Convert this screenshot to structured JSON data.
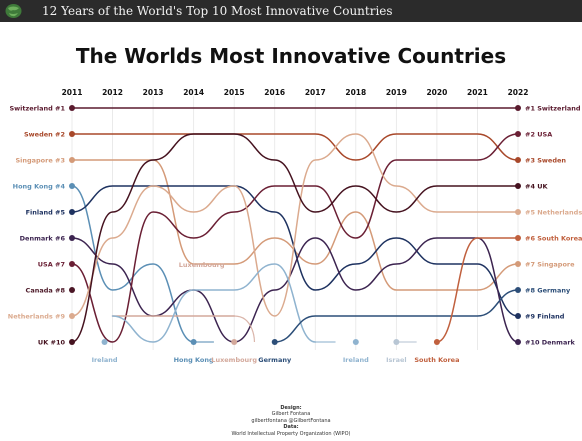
{
  "header": {
    "title": "12 Years of the World's Top 10 Most Innovative Countries",
    "logo_icon": "globe-icon"
  },
  "colors": {
    "Switzerland": "#5a1a2e",
    "Sweden": "#a8482a",
    "Singapore": "#d49a78",
    "Hong Kong": "#5b8fb5",
    "Finland": "#1e3260",
    "Denmark": "#3c2450",
    "USA": "#6a1f34",
    "Canada": "#4a1625",
    "Netherlands": "#dbaa8e",
    "UK": "#45121f",
    "Luxembourg": "#d3a89b",
    "Ireland": "#8fb3cf",
    "Germany": "#2c4e78",
    "Korea": "#c0603e",
    "Israel": "#b8c6d4"
  },
  "chart_data": {
    "type": "bump",
    "title": "The Worlds Most Innovative Countries",
    "years": [
      "2011",
      "2012",
      "2013",
      "2014",
      "2015",
      "2016",
      "2017",
      "2018",
      "2019",
      "2020",
      "2021",
      "2022"
    ],
    "left_labels": [
      "Switzerland #1",
      "Sweden #2",
      "Singapore #3",
      "Hong Kong #4",
      "Finland #5",
      "Denmark #6",
      "USA #7",
      "Canada #8",
      "Netherlands #9",
      "UK #10"
    ],
    "right_labels": [
      "#1 Switzerland",
      "#2 USA",
      "#3 Sweden",
      "#4 UK",
      "#5 Netherlands",
      "#6 South Korea",
      "#7 Singapore",
      "#8 Germany",
      "#9 Finland",
      "#10 Denmark"
    ],
    "series": [
      {
        "name": "Switzerland",
        "ranks": [
          1,
          1,
          1,
          1,
          1,
          1,
          1,
          1,
          1,
          1,
          1,
          1
        ]
      },
      {
        "name": "Sweden",
        "ranks": [
          2,
          2,
          2,
          2,
          2,
          2,
          2,
          3,
          2,
          2,
          2,
          3
        ]
      },
      {
        "name": "Singapore",
        "ranks": [
          3,
          3,
          3,
          7,
          7,
          6,
          7,
          5,
          8,
          8,
          8,
          7
        ]
      },
      {
        "name": "Hong Kong",
        "ranks": [
          4,
          8,
          7,
          10,
          null,
          null,
          null,
          null,
          null,
          null,
          null,
          null
        ]
      },
      {
        "name": "Finland",
        "ranks": [
          5,
          4,
          4,
          4,
          4,
          5,
          8,
          7,
          6,
          7,
          7,
          9
        ]
      },
      {
        "name": "Denmark",
        "ranks": [
          6,
          7,
          9,
          8,
          10,
          8,
          6,
          8,
          7,
          6,
          6,
          10
        ]
      },
      {
        "name": "USA",
        "ranks": [
          7,
          10,
          5,
          6,
          5,
          4,
          4,
          6,
          3,
          3,
          3,
          2
        ]
      },
      {
        "name": "Canada",
        "ranks": [
          8,
          null,
          null,
          null,
          null,
          null,
          null,
          null,
          null,
          null,
          null,
          null
        ]
      },
      {
        "name": "Netherlands",
        "ranks": [
          9,
          6,
          4,
          5,
          4,
          9,
          3,
          2,
          4,
          5,
          5,
          5
        ]
      },
      {
        "name": "UK",
        "ranks": [
          10,
          5,
          3,
          2,
          2,
          3,
          5,
          4,
          5,
          4,
          4,
          4
        ]
      },
      {
        "name": "Luxembourg",
        "ranks": [
          null,
          9,
          9,
          9,
          9,
          null,
          null,
          null,
          null,
          null,
          null,
          null
        ]
      },
      {
        "name": "Ireland",
        "ranks": [
          null,
          9,
          10,
          8,
          8,
          7,
          10,
          null,
          null,
          null,
          null,
          null
        ]
      },
      {
        "name": "Germany",
        "ranks": [
          null,
          null,
          null,
          null,
          null,
          10,
          9,
          9,
          9,
          9,
          9,
          8
        ]
      },
      {
        "name": "Israel",
        "ranks": [
          null,
          null,
          null,
          null,
          null,
          null,
          null,
          null,
          10,
          null,
          null,
          null
        ]
      },
      {
        "name": "South Korea",
        "ranks": [
          null,
          null,
          null,
          null,
          null,
          null,
          null,
          null,
          null,
          10,
          6,
          6
        ]
      }
    ],
    "exit_labels": [
      {
        "name": "Ireland",
        "year": "2012"
      },
      {
        "name": "Hong Kong",
        "year": "2014"
      },
      {
        "name": "Luxembourg",
        "year": "2015"
      },
      {
        "name": "Germany",
        "year": "2016"
      },
      {
        "name": "Ireland",
        "year": "2018"
      },
      {
        "name": "Israel",
        "year": "2019"
      },
      {
        "name": "South Korea",
        "year": "2020"
      }
    ],
    "annotations": [
      {
        "text": "Luxembourg",
        "year": "2014"
      }
    ]
  },
  "footer": {
    "design_label": "Design:",
    "designer": "Gilbert Fontana",
    "handles": "gilbertfontana   @GilbertFontana",
    "data_label": "Data:",
    "source": "World Intellectual Property Organization (WIPO)"
  }
}
